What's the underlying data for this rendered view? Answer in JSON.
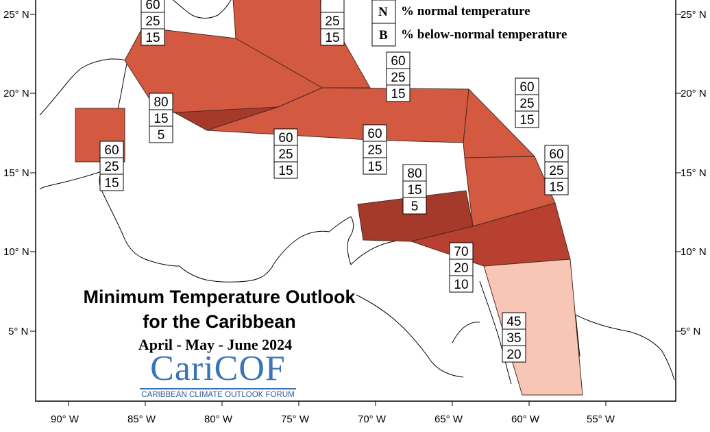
{
  "title": {
    "line1": "Minimum Temperature Outlook",
    "line2": "for the Caribbean",
    "period": "April - May - June 2024"
  },
  "logo": {
    "name": "CariCOF",
    "tagline": "CARIBBEAN CLIMATE OUTLOOK FORUM",
    "color": "#3a73b8"
  },
  "legend": [
    {
      "key": "N",
      "text": "% normal temperature"
    },
    {
      "key": "B",
      "text": "% below-normal temperature"
    }
  ],
  "axes": {
    "lat_labels": [
      "25° N",
      "20° N",
      "15° N",
      "10° N",
      "5° N"
    ],
    "lon_labels": [
      "90° W",
      "85° W",
      "80° W",
      "75° W",
      "70° W",
      "65° W",
      "60° W",
      "55° W"
    ]
  },
  "colors": {
    "above_60": "#d35a40",
    "above_70": "#b84030",
    "above_80": "#a63a2a",
    "above_45": "#f7c6b4"
  },
  "probability_boxes": [
    {
      "above": "60",
      "normal": "25",
      "below": "15"
    },
    {
      "above": "",
      "normal": "25",
      "below": "15"
    },
    {
      "above": "60",
      "normal": "25",
      "below": "15"
    },
    {
      "above": "80",
      "normal": "15",
      "below": "5"
    },
    {
      "above": "60",
      "normal": "25",
      "below": "15"
    },
    {
      "above": "60",
      "normal": "25",
      "below": "15"
    },
    {
      "above": "60",
      "normal": "25",
      "below": "15"
    },
    {
      "above": "60",
      "normal": "25",
      "below": "15"
    },
    {
      "above": "60",
      "normal": "25",
      "below": "15"
    },
    {
      "above": "80",
      "normal": "15",
      "below": "5"
    },
    {
      "above": "70",
      "normal": "20",
      "below": "10"
    },
    {
      "above": "45",
      "normal": "35",
      "below": "20"
    }
  ]
}
